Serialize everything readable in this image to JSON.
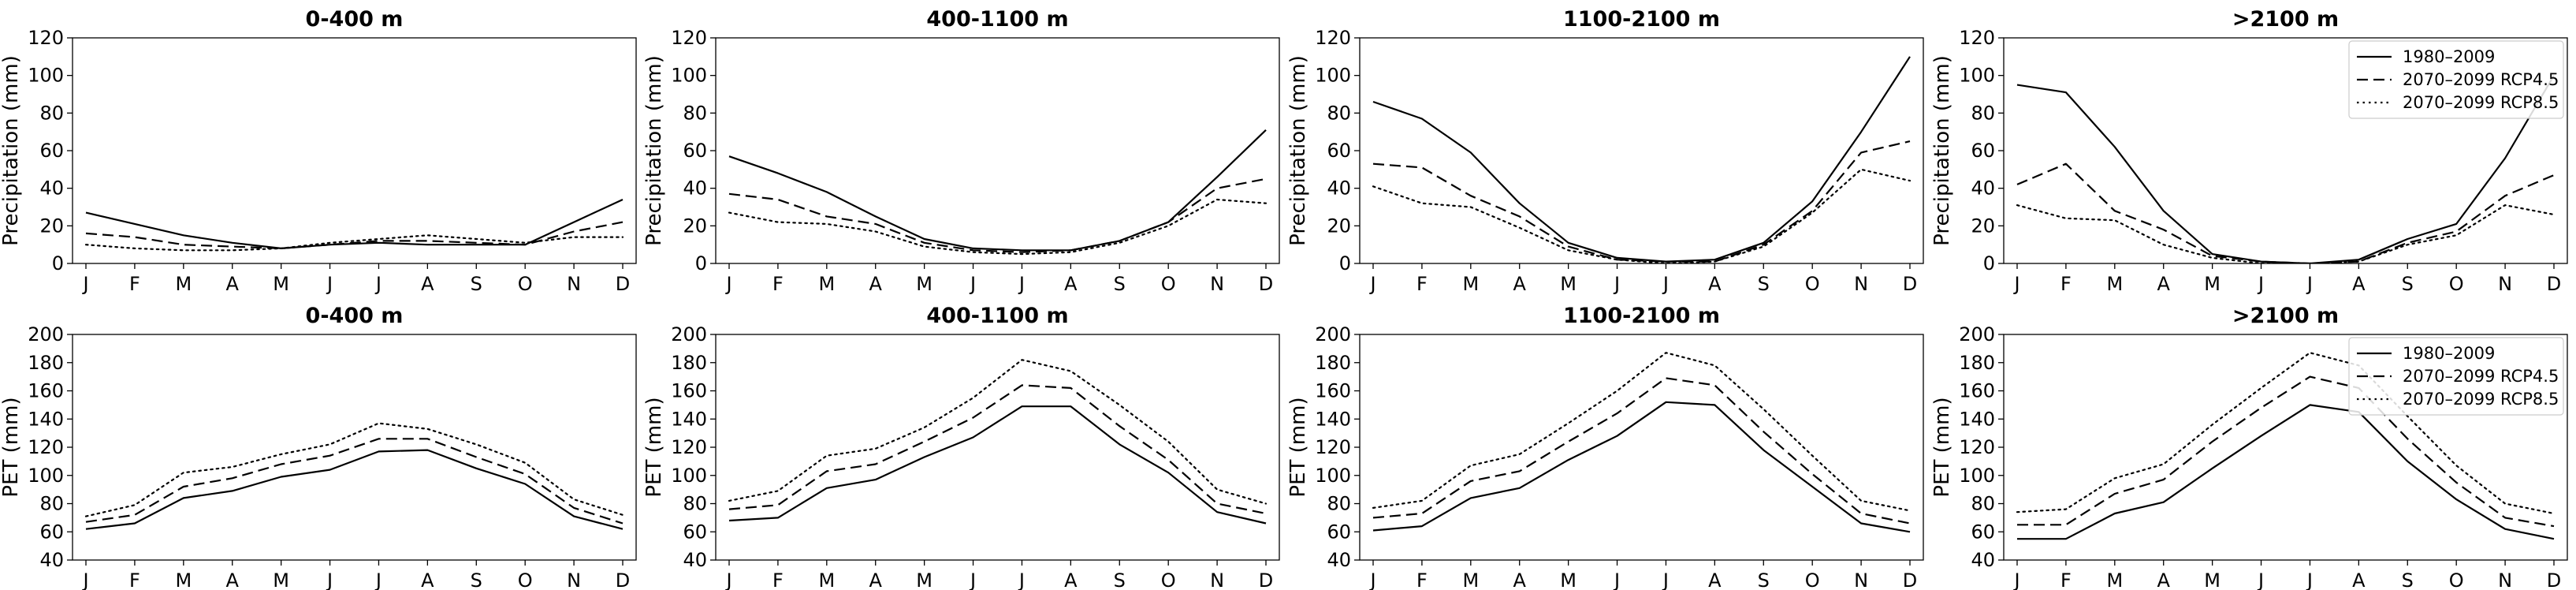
{
  "legend_labels": [
    "1980–2009",
    "2070–2099 RCP4.5",
    "2070–2099 RCP8.5"
  ],
  "chart_data": [
    {
      "type": "line",
      "title": "0-400 m",
      "ylabel": "Precipitation (mm)",
      "ylim": [
        0,
        120
      ],
      "yticks": [
        0,
        20,
        40,
        60,
        80,
        100,
        120
      ],
      "categories": [
        "J",
        "F",
        "M",
        "A",
        "M",
        "J",
        "J",
        "A",
        "S",
        "O",
        "N",
        "D"
      ],
      "legend": null,
      "series": [
        {
          "name": "1980–2009",
          "style": "solid",
          "values": [
            27,
            21,
            15,
            11,
            8,
            10,
            11,
            10,
            10,
            10,
            22,
            34
          ]
        },
        {
          "name": "2070–2099 RCP4.5",
          "style": "dashed",
          "values": [
            16,
            14,
            10,
            9,
            8,
            10,
            12,
            12,
            11,
            10,
            17,
            22
          ]
        },
        {
          "name": "2070–2099 RCP8.5",
          "style": "dotted",
          "values": [
            10,
            8,
            7,
            7,
            8,
            11,
            13,
            15,
            13,
            11,
            14,
            14
          ]
        }
      ]
    },
    {
      "type": "line",
      "title": "400-1100 m",
      "ylabel": "Precipitation (mm)",
      "ylim": [
        0,
        120
      ],
      "yticks": [
        0,
        20,
        40,
        60,
        80,
        100,
        120
      ],
      "categories": [
        "J",
        "F",
        "M",
        "A",
        "M",
        "J",
        "J",
        "A",
        "S",
        "O",
        "N",
        "D"
      ],
      "legend": null,
      "series": [
        {
          "name": "1980–2009",
          "style": "solid",
          "values": [
            57,
            48,
            38,
            25,
            13,
            8,
            7,
            7,
            12,
            22,
            46,
            71
          ]
        },
        {
          "name": "2070–2099 RCP4.5",
          "style": "dashed",
          "values": [
            37,
            34,
            25,
            21,
            11,
            7,
            6,
            7,
            12,
            22,
            40,
            45
          ]
        },
        {
          "name": "2070–2099 RCP8.5",
          "style": "dotted",
          "values": [
            27,
            22,
            21,
            17,
            9,
            6,
            5,
            6,
            11,
            20,
            34,
            32
          ]
        }
      ]
    },
    {
      "type": "line",
      "title": "1100-2100 m",
      "ylabel": "Precipitation (mm)",
      "ylim": [
        0,
        120
      ],
      "yticks": [
        0,
        20,
        40,
        60,
        80,
        100,
        120
      ],
      "categories": [
        "J",
        "F",
        "M",
        "A",
        "M",
        "J",
        "J",
        "A",
        "S",
        "O",
        "N",
        "D"
      ],
      "legend": null,
      "series": [
        {
          "name": "1980–2009",
          "style": "solid",
          "values": [
            86,
            77,
            59,
            32,
            11,
            3,
            1,
            2,
            11,
            33,
            70,
            110
          ]
        },
        {
          "name": "2070–2099 RCP4.5",
          "style": "dashed",
          "values": [
            53,
            51,
            36,
            25,
            9,
            2,
            1,
            1,
            10,
            28,
            59,
            65
          ]
        },
        {
          "name": "2070–2099 RCP8.5",
          "style": "dotted",
          "values": [
            41,
            32,
            30,
            19,
            7,
            2,
            0,
            1,
            9,
            27,
            50,
            44
          ]
        }
      ]
    },
    {
      "type": "line",
      "title": ">2100 m",
      "ylabel": "Precipitation (mm)",
      "ylim": [
        0,
        120
      ],
      "yticks": [
        0,
        20,
        40,
        60,
        80,
        100,
        120
      ],
      "categories": [
        "J",
        "F",
        "M",
        "A",
        "M",
        "J",
        "J",
        "A",
        "S",
        "O",
        "N",
        "D"
      ],
      "legend": "top-right",
      "series": [
        {
          "name": "1980–2009",
          "style": "solid",
          "values": [
            95,
            91,
            62,
            28,
            5,
            1,
            0,
            2,
            13,
            21,
            56,
            100
          ]
        },
        {
          "name": "2070–2099 RCP4.5",
          "style": "dashed",
          "values": [
            42,
            53,
            28,
            18,
            4,
            1,
            0,
            1,
            11,
            17,
            36,
            47
          ]
        },
        {
          "name": "2070–2099 RCP8.5",
          "style": "dotted",
          "values": [
            31,
            24,
            23,
            10,
            3,
            0,
            0,
            1,
            10,
            15,
            31,
            26
          ]
        }
      ]
    },
    {
      "type": "line",
      "title": "0-400 m",
      "ylabel": "PET (mm)",
      "ylim": [
        40,
        200
      ],
      "yticks": [
        40,
        60,
        80,
        100,
        120,
        140,
        160,
        180,
        200
      ],
      "categories": [
        "J",
        "F",
        "M",
        "A",
        "M",
        "J",
        "J",
        "A",
        "S",
        "O",
        "N",
        "D"
      ],
      "legend": null,
      "series": [
        {
          "name": "1980–2009",
          "style": "solid",
          "values": [
            62,
            66,
            84,
            89,
            99,
            104,
            117,
            118,
            105,
            94,
            71,
            62
          ]
        },
        {
          "name": "2070–2099 RCP4.5",
          "style": "dashed",
          "values": [
            67,
            72,
            92,
            98,
            108,
            114,
            126,
            126,
            113,
            101,
            77,
            66
          ]
        },
        {
          "name": "2070–2099 RCP8.5",
          "style": "dotted",
          "values": [
            71,
            79,
            102,
            106,
            115,
            122,
            137,
            133,
            122,
            109,
            83,
            72
          ]
        }
      ]
    },
    {
      "type": "line",
      "title": "400-1100 m",
      "ylabel": "PET (mm)",
      "ylim": [
        40,
        200
      ],
      "yticks": [
        40,
        60,
        80,
        100,
        120,
        140,
        160,
        180,
        200
      ],
      "categories": [
        "J",
        "F",
        "M",
        "A",
        "M",
        "J",
        "J",
        "A",
        "S",
        "O",
        "N",
        "D"
      ],
      "legend": null,
      "series": [
        {
          "name": "1980–2009",
          "style": "solid",
          "values": [
            68,
            70,
            91,
            97,
            113,
            127,
            149,
            149,
            122,
            102,
            74,
            66
          ]
        },
        {
          "name": "2070–2099 RCP4.5",
          "style": "dashed",
          "values": [
            76,
            79,
            103,
            108,
            124,
            141,
            164,
            162,
            135,
            111,
            80,
            73
          ]
        },
        {
          "name": "2070–2099 RCP8.5",
          "style": "dotted",
          "values": [
            82,
            89,
            114,
            119,
            134,
            155,
            182,
            174,
            150,
            124,
            90,
            80
          ]
        }
      ]
    },
    {
      "type": "line",
      "title": "1100-2100 m",
      "ylabel": "PET (mm)",
      "ylim": [
        40,
        200
      ],
      "yticks": [
        40,
        60,
        80,
        100,
        120,
        140,
        160,
        180,
        200
      ],
      "categories": [
        "J",
        "F",
        "M",
        "A",
        "M",
        "J",
        "J",
        "A",
        "S",
        "O",
        "N",
        "D"
      ],
      "legend": null,
      "series": [
        {
          "name": "1980–2009",
          "style": "solid",
          "values": [
            61,
            64,
            84,
            91,
            111,
            128,
            152,
            150,
            118,
            92,
            66,
            60
          ]
        },
        {
          "name": "2070–2099 RCP4.5",
          "style": "dashed",
          "values": [
            70,
            73,
            96,
            103,
            124,
            144,
            169,
            164,
            131,
            101,
            73,
            66
          ]
        },
        {
          "name": "2070–2099 RCP8.5",
          "style": "dotted",
          "values": [
            77,
            82,
            107,
            115,
            137,
            160,
            187,
            178,
            147,
            114,
            82,
            75
          ]
        }
      ]
    },
    {
      "type": "line",
      "title": ">2100 m",
      "ylabel": "PET (mm)",
      "ylim": [
        40,
        200
      ],
      "yticks": [
        40,
        60,
        80,
        100,
        120,
        140,
        160,
        180,
        200
      ],
      "categories": [
        "J",
        "F",
        "M",
        "A",
        "M",
        "J",
        "J",
        "A",
        "S",
        "O",
        "N",
        "D"
      ],
      "legend": "top-right",
      "series": [
        {
          "name": "1980–2009",
          "style": "solid",
          "values": [
            55,
            55,
            73,
            81,
            105,
            128,
            150,
            145,
            110,
            83,
            62,
            55
          ]
        },
        {
          "name": "2070–2099 RCP4.5",
          "style": "dashed",
          "values": [
            65,
            65,
            87,
            97,
            124,
            148,
            170,
            162,
            126,
            95,
            70,
            64
          ]
        },
        {
          "name": "2070–2099 RCP8.5",
          "style": "dotted",
          "values": [
            74,
            76,
            98,
            108,
            136,
            162,
            187,
            178,
            142,
            107,
            80,
            73
          ]
        }
      ]
    }
  ]
}
